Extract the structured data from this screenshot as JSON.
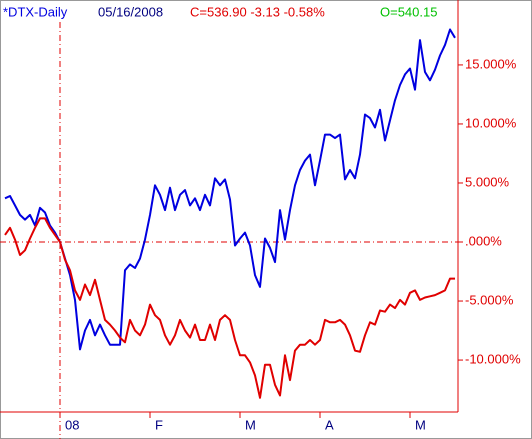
{
  "chart_data": {
    "type": "line",
    "symbol": "*DTX-Daily",
    "date": "05/16/2008",
    "close_info": "C=536.90 -3.13 -0.58%",
    "open_info": "O=540.15",
    "xlim": [
      0,
      90
    ],
    "xticks": [
      {
        "value": 11,
        "label": "08"
      },
      {
        "value": 29,
        "label": "F"
      },
      {
        "value": 47,
        "label": "M"
      },
      {
        "value": 63,
        "label": "A"
      },
      {
        "value": 81,
        "label": "M"
      }
    ],
    "year_marker": 11,
    "ylim": [
      -14.4,
      20.5
    ],
    "yticks": [
      {
        "value": 15,
        "label": "15.000%"
      },
      {
        "value": 10,
        "label": "10.000%"
      },
      {
        "value": 5,
        "label": "5.000%"
      },
      {
        "value": 0,
        "label": ".000%"
      },
      {
        "value": -5,
        "label": "-5.000%"
      },
      {
        "value": -10,
        "label": "-10.000%"
      }
    ],
    "axis_color": "#e00000",
    "series": [
      {
        "color": "#0000e0",
        "values": [
          3.7,
          3.9,
          3.1,
          2.3,
          1.9,
          2.3,
          1.4,
          2.9,
          2.5,
          1.4,
          0.8,
          0,
          -1.4,
          -2.8,
          -4.9,
          -9.1,
          -7.5,
          -6.6,
          -7.9,
          -7.0,
          -7.9,
          -8.7,
          -8.7,
          -8.7,
          -2.4,
          -1.9,
          -2.2,
          -1.4,
          0.2,
          2.3,
          4.8,
          4.0,
          2.7,
          4.6,
          2.7,
          4.0,
          4.4,
          3.1,
          3.7,
          2.7,
          4.0,
          3.1,
          5.4,
          4.8,
          5.3,
          3.6,
          -0.3,
          0.3,
          0.8,
          -0.3,
          -2.8,
          -3.8,
          0.3,
          -0.5,
          -1.7,
          2.7,
          0.2,
          2.7,
          4.8,
          6.1,
          6.9,
          7.4,
          4.8,
          6.9,
          9.1,
          9.1,
          8.8,
          9.1,
          5.3,
          6.1,
          5.4,
          7.4,
          10.8,
          10.5,
          9.7,
          11.2,
          8.6,
          10.3,
          12.0,
          13.3,
          14.2,
          14.7,
          12.9,
          17.1,
          14.4,
          13.7,
          14.6,
          15.8,
          16.7,
          18.0,
          17.3
        ]
      },
      {
        "color": "#e00000",
        "values": [
          0.6,
          1.2,
          0.2,
          -1.1,
          -0.7,
          0.3,
          1.2,
          2.0,
          2.0,
          1.2,
          0.6,
          0,
          -1.5,
          -2.4,
          -4.1,
          -4.9,
          -3.6,
          -4.5,
          -3.2,
          -4.9,
          -6.6,
          -7.0,
          -7.5,
          -8.1,
          -8.5,
          -6.6,
          -7.5,
          -7.9,
          -7.0,
          -5.3,
          -6.2,
          -6.6,
          -7.9,
          -8.7,
          -7.9,
          -6.6,
          -7.5,
          -8.1,
          -7.0,
          -8.3,
          -8.3,
          -7.0,
          -8.3,
          -6.6,
          -6.2,
          -6.6,
          -8.3,
          -9.6,
          -9.6,
          -10.2,
          -11.3,
          -13.2,
          -10.4,
          -10.4,
          -12.1,
          -13.0,
          -9.6,
          -11.7,
          -9.2,
          -8.7,
          -8.7,
          -8.3,
          -8.7,
          -8.3,
          -6.6,
          -6.8,
          -6.8,
          -6.6,
          -7.0,
          -7.9,
          -9.2,
          -9.3,
          -7.9,
          -6.8,
          -7.0,
          -5.8,
          -5.9,
          -5.3,
          -5.6,
          -4.9,
          -5.3,
          -4.3,
          -4.1,
          -4.9,
          -4.7,
          -4.6,
          -4.5,
          -4.3,
          -4.1,
          -3.1,
          -3.1
        ]
      }
    ]
  }
}
